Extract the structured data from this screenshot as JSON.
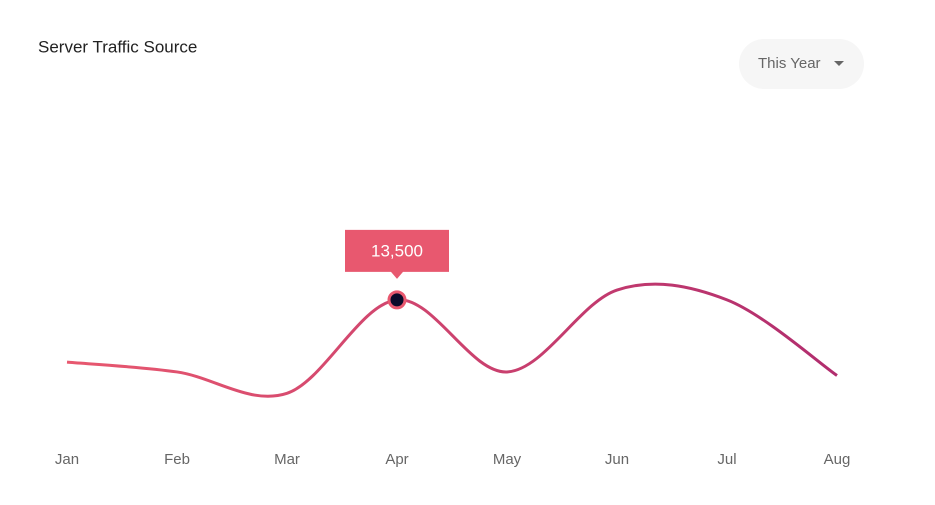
{
  "chart_data": {
    "type": "line",
    "title": "Server Traffic Source",
    "filter": "This Year",
    "categories": [
      "Jan",
      "Feb",
      "Mar",
      "Apr",
      "May",
      "Jun",
      "Jul",
      "Aug"
    ],
    "values": [
      6500,
      5400,
      3000,
      13500,
      5400,
      14600,
      13500,
      5000
    ],
    "value_labels": [
      null,
      null,
      null,
      "13,500",
      null,
      null,
      null,
      null
    ],
    "colors": [
      "#e8586f",
      "#b12d6e"
    ],
    "marker_color": "#0a0a2a",
    "ylim": [
      0,
      20000
    ]
  }
}
